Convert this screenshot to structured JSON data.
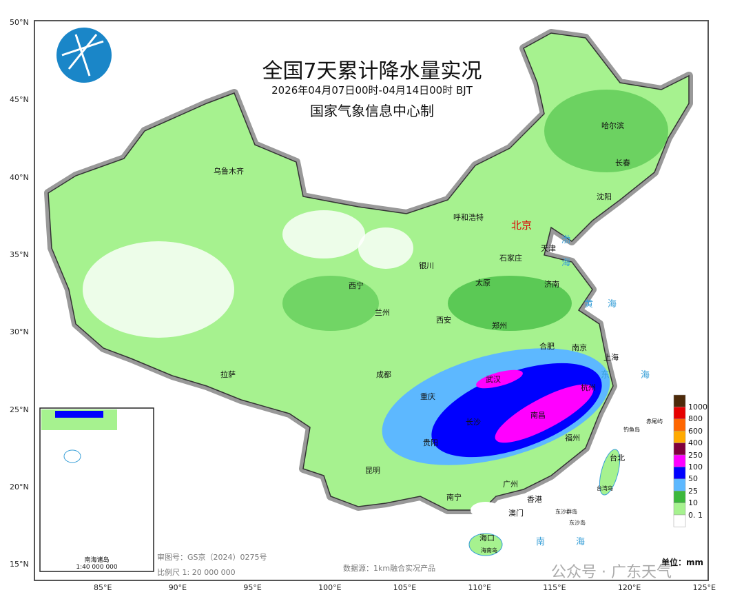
{
  "header": {
    "title": "全国7天累计降水量实况",
    "subtitle": "2026年04月07日00时-04月14日00时 BJT",
    "issuer": "国家气象信息中心制"
  },
  "axes": {
    "lat_ticks": [
      "50°N",
      "45°N",
      "40°N",
      "35°N",
      "30°N",
      "25°N",
      "20°N",
      "15°N"
    ],
    "lon_ticks": [
      "85°E",
      "90°E",
      "95°E",
      "100°E",
      "105°E",
      "110°E",
      "115°E",
      "120°E",
      "125°E"
    ]
  },
  "cities": [
    {
      "name": "乌鲁木齐"
    },
    {
      "name": "哈尔滨"
    },
    {
      "name": "长春"
    },
    {
      "name": "沈阳"
    },
    {
      "name": "呼和浩特"
    },
    {
      "name": "北京"
    },
    {
      "name": "天津"
    },
    {
      "name": "石家庄"
    },
    {
      "name": "太原"
    },
    {
      "name": "济南"
    },
    {
      "name": "银川"
    },
    {
      "name": "西宁"
    },
    {
      "name": "兰州"
    },
    {
      "name": "西安"
    },
    {
      "name": "郑州"
    },
    {
      "name": "合肥"
    },
    {
      "name": "南京"
    },
    {
      "name": "上海"
    },
    {
      "name": "拉萨"
    },
    {
      "name": "成都"
    },
    {
      "name": "武汉"
    },
    {
      "name": "杭州"
    },
    {
      "name": "重庆"
    },
    {
      "name": "长沙"
    },
    {
      "name": "南昌"
    },
    {
      "name": "福州"
    },
    {
      "name": "贵阳"
    },
    {
      "name": "昆明"
    },
    {
      "name": "台北"
    },
    {
      "name": "广州"
    },
    {
      "name": "南宁"
    },
    {
      "name": "香港"
    },
    {
      "name": "澳门"
    },
    {
      "name": "海口"
    }
  ],
  "islands": [
    "海南岛",
    "台湾岛",
    "东沙群岛",
    "东沙岛",
    "钓鱼岛",
    "赤尾屿"
  ],
  "seas": [
    "渤",
    "海",
    "黄",
    "海",
    "东",
    "海",
    "南",
    "海"
  ],
  "inset": {
    "title": "南海诸岛",
    "scale": "1:40 000 000"
  },
  "legend": {
    "unit": "单位：mm",
    "levels": [
      {
        "label": "1000",
        "color": "#4d2a0a"
      },
      {
        "label": "800",
        "color": "#e60000"
      },
      {
        "label": "600",
        "color": "#ff6600"
      },
      {
        "label": "400",
        "color": "#ffaa00"
      },
      {
        "label": "250",
        "color": "#80003c"
      },
      {
        "label": "100",
        "color": "#ff00ff"
      },
      {
        "label": "50",
        "color": "#0000ff"
      },
      {
        "label": "25",
        "color": "#5db8ff"
      },
      {
        "label": "10",
        "color": "#3cb83c"
      },
      {
        "label": "0. 1",
        "color": "#a6f28f"
      },
      {
        "label": "",
        "color": "#ffffff"
      }
    ]
  },
  "footer": {
    "approval": "审图号：GS京（2024）0275号",
    "scale": "比例尺 1: 20 000 000",
    "source": "数据源：1km融合实况产品",
    "watermark": "公众号 · 广东天气"
  }
}
